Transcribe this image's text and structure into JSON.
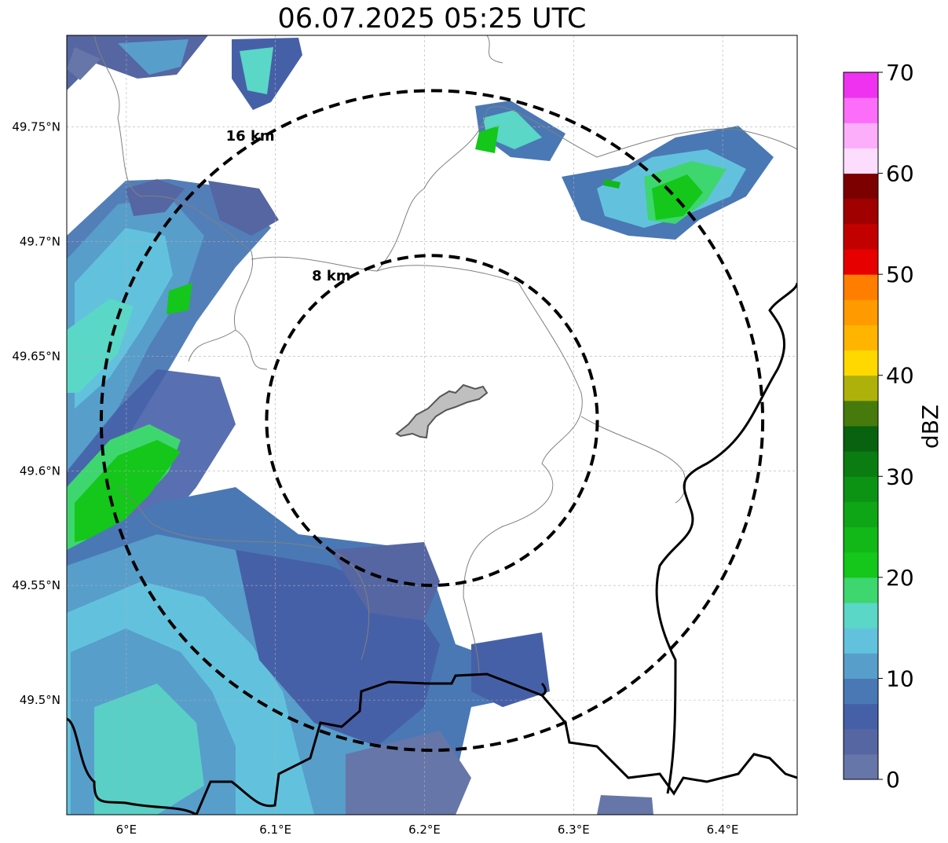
{
  "title": "06.07.2025 05:25 UTC",
  "map": {
    "lon_range": [
      5.96,
      6.45
    ],
    "lat_range": [
      49.45,
      49.79
    ],
    "lon_ticks": [
      {
        "value": 6.0,
        "label": "6°E"
      },
      {
        "value": 6.1,
        "label": "6.1°E"
      },
      {
        "value": 6.2,
        "label": "6.2°E"
      },
      {
        "value": 6.3,
        "label": "6.3°E"
      },
      {
        "value": 6.4,
        "label": "6.4°E"
      }
    ],
    "lat_ticks": [
      {
        "value": 49.5,
        "label": "49.5°N"
      },
      {
        "value": 49.55,
        "label": "49.55°N"
      },
      {
        "value": 49.6,
        "label": "49.6°N"
      },
      {
        "value": 49.65,
        "label": "49.65°N"
      },
      {
        "value": 49.7,
        "label": "49.7°N"
      },
      {
        "value": 49.75,
        "label": "49.75°N"
      }
    ],
    "gridlines": true,
    "center": {
      "lon": 6.205,
      "lat": 49.622
    },
    "range_rings": [
      {
        "radius_km": 8,
        "label": "8 km"
      },
      {
        "radius_km": 16,
        "label": "16 km"
      }
    ],
    "center_feature": "grey-shaded-area"
  },
  "colorbar": {
    "label": "dBZ",
    "min": 0,
    "max": 70,
    "ticks": [
      {
        "value": 0,
        "label": "0"
      },
      {
        "value": 10,
        "label": "10"
      },
      {
        "value": 20,
        "label": "20"
      },
      {
        "value": 30,
        "label": "30"
      },
      {
        "value": 40,
        "label": "40"
      },
      {
        "value": 50,
        "label": "50"
      },
      {
        "value": 60,
        "label": "60"
      },
      {
        "value": 70,
        "label": "70"
      }
    ],
    "bins": [
      {
        "from": 0,
        "to": 2.5,
        "color": "#6676a8"
      },
      {
        "from": 2.5,
        "to": 5,
        "color": "#5566a2"
      },
      {
        "from": 5,
        "to": 7.5,
        "color": "#4660a8"
      },
      {
        "from": 7.5,
        "to": 10,
        "color": "#4a78b5"
      },
      {
        "from": 10,
        "to": 12.5,
        "color": "#579ecb"
      },
      {
        "from": 12.5,
        "to": 15,
        "color": "#62c2de"
      },
      {
        "from": 15,
        "to": 17.5,
        "color": "#5ad7c6"
      },
      {
        "from": 17.5,
        "to": 20,
        "color": "#3ed66f"
      },
      {
        "from": 20,
        "to": 22.5,
        "color": "#14c71a"
      },
      {
        "from": 22.5,
        "to": 25,
        "color": "#12b818"
      },
      {
        "from": 25,
        "to": 27.5,
        "color": "#0ea616"
      },
      {
        "from": 27.5,
        "to": 30,
        "color": "#0c9314"
      },
      {
        "from": 30,
        "to": 32.5,
        "color": "#0a7c12"
      },
      {
        "from": 32.5,
        "to": 35,
        "color": "#08620f"
      },
      {
        "from": 35,
        "to": 37.5,
        "color": "#467a0c"
      },
      {
        "from": 37.5,
        "to": 40,
        "color": "#aeb10a"
      },
      {
        "from": 40,
        "to": 42.5,
        "color": "#ffd800"
      },
      {
        "from": 42.5,
        "to": 45,
        "color": "#ffb400"
      },
      {
        "from": 45,
        "to": 47.5,
        "color": "#ff9b00"
      },
      {
        "from": 47.5,
        "to": 50,
        "color": "#ff7e00"
      },
      {
        "from": 50,
        "to": 52.5,
        "color": "#e60000"
      },
      {
        "from": 52.5,
        "to": 55,
        "color": "#c30000"
      },
      {
        "from": 55,
        "to": 57.5,
        "color": "#a00000"
      },
      {
        "from": 57.5,
        "to": 60,
        "color": "#7d0000"
      },
      {
        "from": 60,
        "to": 62.5,
        "color": "#fdddfd"
      },
      {
        "from": 62.5,
        "to": 65,
        "color": "#fcaefb"
      },
      {
        "from": 65,
        "to": 67.5,
        "color": "#fc6ef9"
      },
      {
        "from": 67.5,
        "to": 70,
        "color": "#ef32ef"
      }
    ]
  }
}
